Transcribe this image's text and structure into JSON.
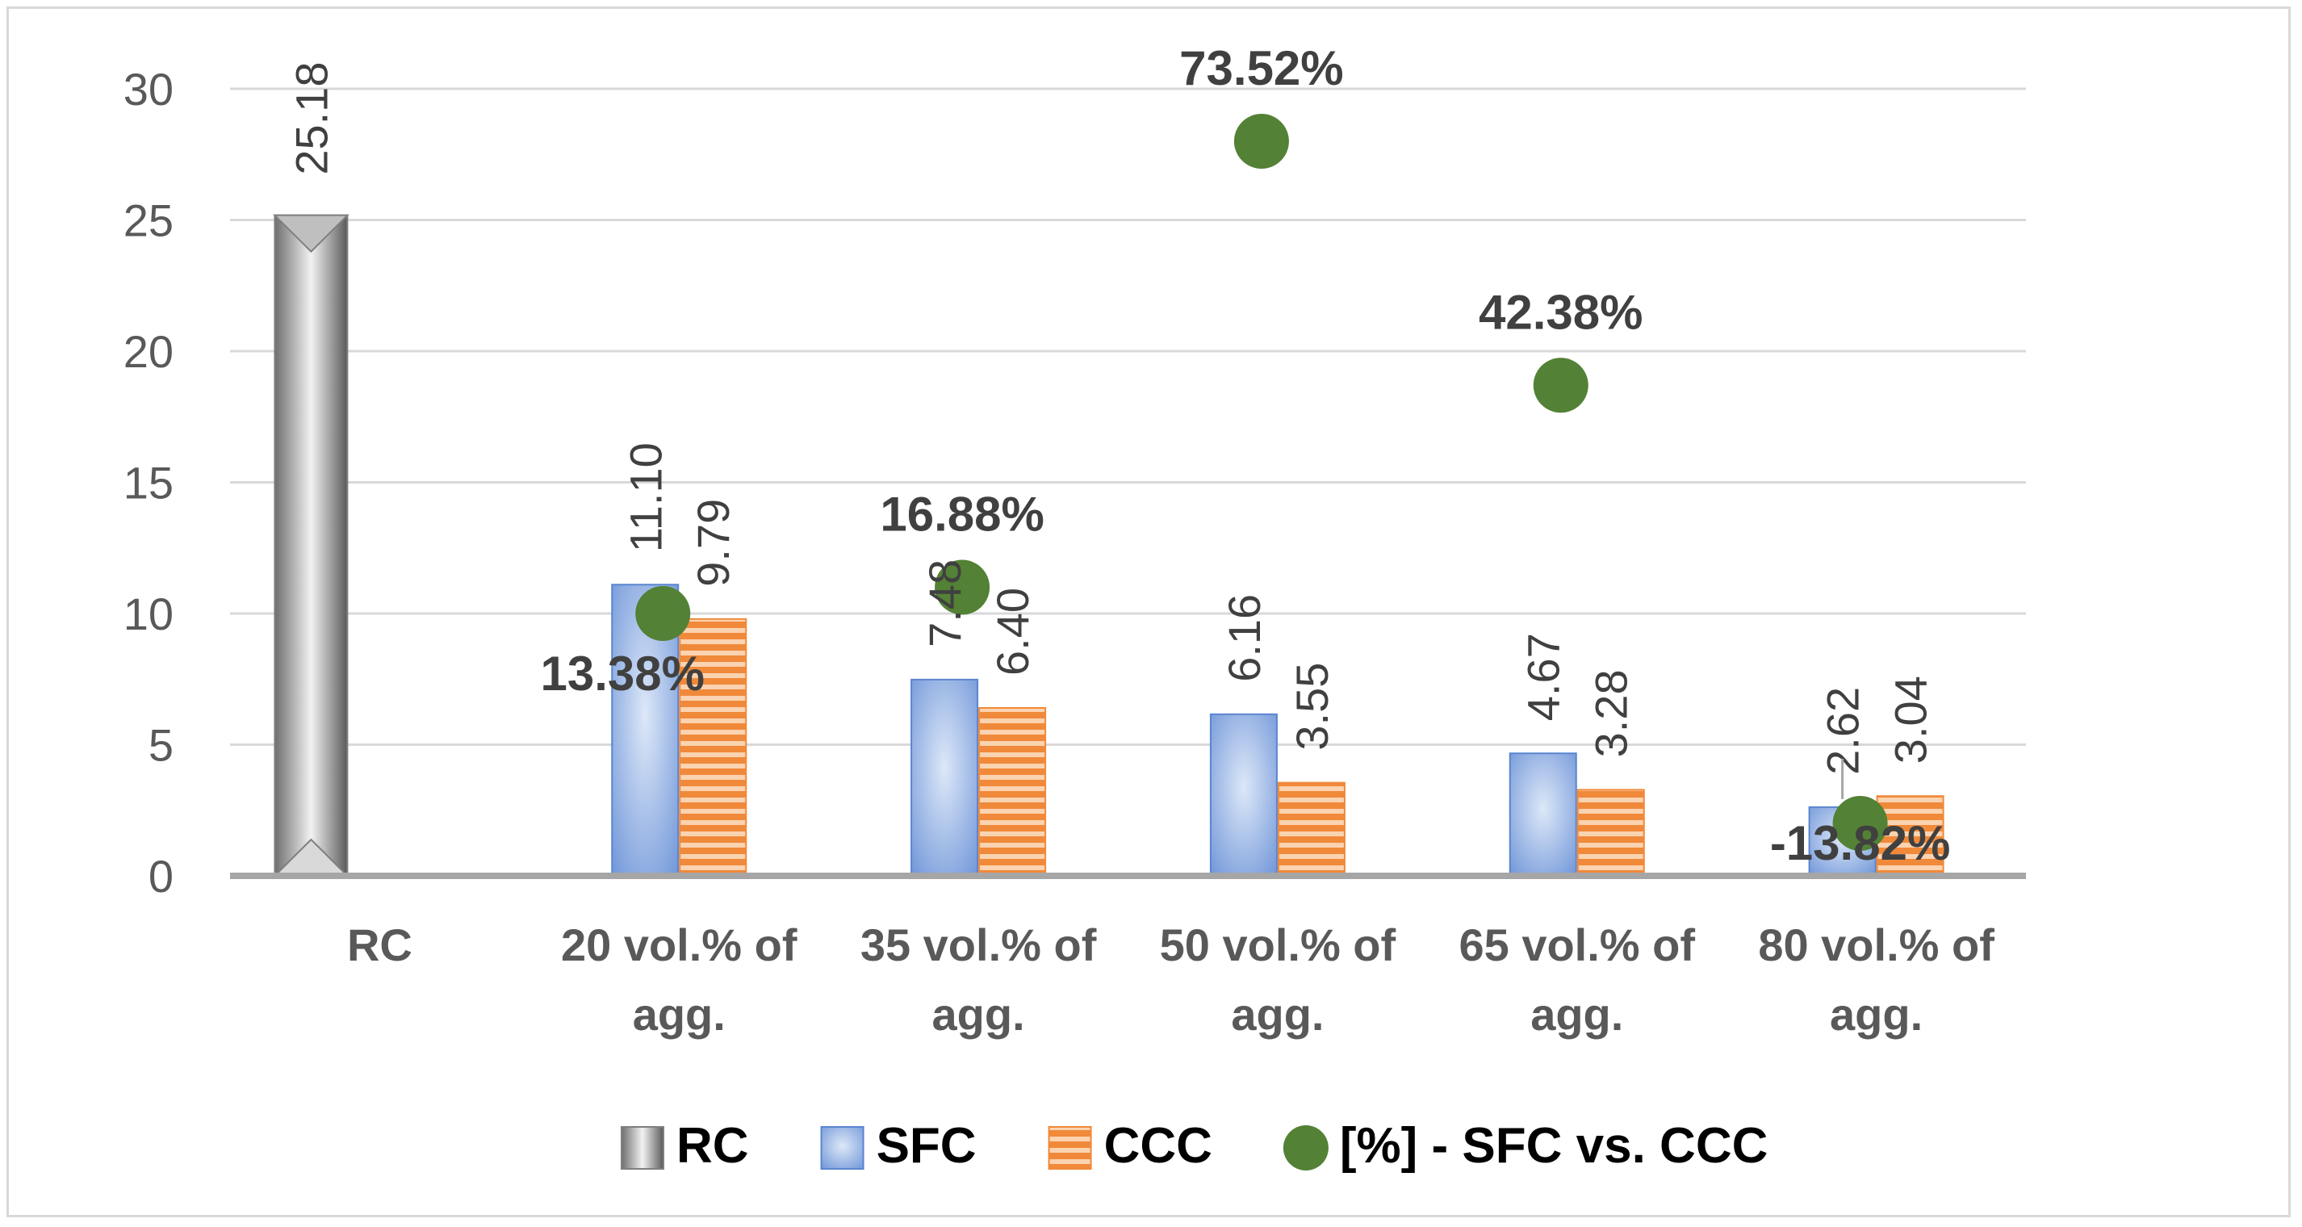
{
  "chart_data": {
    "type": "bar",
    "title": "",
    "xlabel": "",
    "ylabel": "",
    "ylim": [
      0,
      30
    ],
    "yticks": [
      0,
      5,
      10,
      15,
      20,
      25,
      30
    ],
    "categories": [
      [
        "RC"
      ],
      [
        "20 vol.% of",
        "agg."
      ],
      [
        "35 vol.% of",
        "agg."
      ],
      [
        "50 vol.% of",
        "agg."
      ],
      [
        "65 vol.% of",
        "agg."
      ],
      [
        "80 vol.% of",
        "agg."
      ]
    ],
    "series": [
      {
        "name": "RC",
        "kind": "bar",
        "color": "#a6a6a6",
        "values": [
          25.18,
          null,
          null,
          null,
          null,
          null
        ],
        "labels": [
          "25.18",
          null,
          null,
          null,
          null,
          null
        ]
      },
      {
        "name": "SFC",
        "kind": "bar",
        "color": "#7aa0e0",
        "values": [
          null,
          11.1,
          7.48,
          6.16,
          4.67,
          2.62
        ],
        "labels": [
          null,
          "11.10",
          "7.48",
          "6.16",
          "4.67",
          "2.62"
        ]
      },
      {
        "name": "CCC",
        "kind": "bar",
        "color": "#f4a05a",
        "values": [
          null,
          9.79,
          6.4,
          3.55,
          3.28,
          3.04
        ],
        "labels": [
          null,
          "9.79",
          "6.40",
          "3.55",
          "3.28",
          "3.04"
        ]
      },
      {
        "name": "[%] - SFC vs. CCC",
        "kind": "scatter",
        "color": "#538135",
        "values": [
          null,
          10.0,
          11.0,
          28.0,
          18.7,
          2.0
        ],
        "labels": [
          null,
          "13.38%",
          "16.88%",
          "73.52%",
          "42.38%",
          "-13.82%"
        ]
      }
    ],
    "legend": {
      "position": "bottom",
      "entries": [
        "RC",
        "SFC",
        "CCC",
        "[%] - SFC vs. CCC"
      ]
    }
  }
}
